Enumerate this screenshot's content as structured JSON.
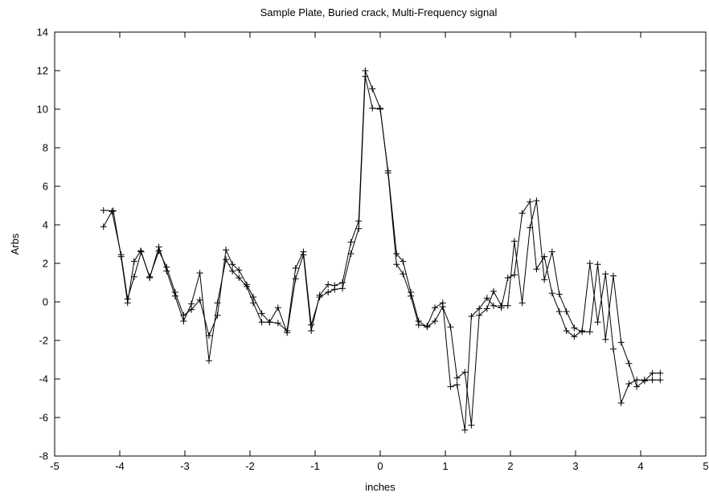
{
  "chart_data": {
    "type": "line",
    "title": "Sample Plate, Buried crack, Multi-Frequency signal",
    "xlabel": "inches",
    "ylabel": "Arbs",
    "xlim": [
      -5,
      5
    ],
    "ylim": [
      -8,
      14
    ],
    "xticks": [
      -5,
      -4,
      -3,
      -2,
      -1,
      0,
      1,
      2,
      3,
      4,
      5
    ],
    "yticks": [
      -8,
      -6,
      -4,
      -2,
      0,
      2,
      4,
      6,
      8,
      10,
      12,
      14
    ],
    "grid": false,
    "marker": "plus",
    "series": [
      {
        "x": [
          -4.25,
          -4.1,
          -3.98,
          -3.88,
          -3.78,
          -3.68,
          -3.54,
          -3.4,
          -3.28,
          -3.15,
          -3.02,
          -2.9,
          -2.77,
          -2.63,
          -2.5,
          -2.37,
          -2.27,
          -2.17,
          -2.05,
          -1.95,
          -1.82,
          -1.7,
          -1.57,
          -1.43,
          -1.3,
          -1.18,
          -1.06,
          -0.93,
          -0.8,
          -0.7,
          -0.58,
          -0.45,
          -0.33,
          -0.23,
          -0.12,
          0.0,
          0.12,
          0.25,
          0.35,
          0.47,
          0.59,
          0.72,
          0.84,
          0.96,
          1.08,
          1.18,
          1.3,
          1.4,
          1.52,
          1.64,
          1.74,
          1.86,
          1.96,
          2.06,
          2.18,
          2.3,
          2.4,
          2.52,
          2.64,
          2.75,
          2.86,
          2.98,
          3.1,
          3.22,
          3.34,
          3.46,
          3.58,
          3.7,
          3.82,
          3.94,
          4.06,
          4.18,
          4.3
        ],
        "y": [
          4.75,
          4.73,
          2.35,
          -0.05,
          2.1,
          2.65,
          1.3,
          2.65,
          1.8,
          0.5,
          -0.7,
          -0.4,
          0.1,
          -1.75,
          -0.7,
          2.7,
          1.95,
          1.65,
          0.9,
          0.25,
          -0.6,
          -1.05,
          -1.1,
          -1.5,
          1.75,
          2.6,
          -1.2,
          0.25,
          0.5,
          0.65,
          0.7,
          2.5,
          3.8,
          11.7,
          10.05,
          10.0,
          6.8,
          2.5,
          2.1,
          0.5,
          -1.0,
          -1.3,
          -1.0,
          -0.25,
          -1.3,
          -3.95,
          -3.65,
          -6.4,
          -0.7,
          -0.35,
          0.55,
          -0.2,
          -0.2,
          3.15,
          -0.05,
          3.85,
          5.25,
          1.15,
          2.6,
          0.4,
          -0.5,
          -1.35,
          -1.55,
          -1.55,
          1.95,
          -1.95,
          1.35,
          -2.1,
          -3.2,
          -4.4,
          -4.1,
          -3.7,
          -3.7
        ]
      },
      {
        "x": [
          -4.25,
          -4.12,
          -3.98,
          -3.88,
          -3.78,
          -3.67,
          -3.54,
          -3.4,
          -3.28,
          -3.15,
          -3.02,
          -2.9,
          -2.77,
          -2.63,
          -2.5,
          -2.37,
          -2.27,
          -2.17,
          -2.05,
          -1.95,
          -1.82,
          -1.7,
          -1.57,
          -1.43,
          -1.3,
          -1.18,
          -1.06,
          -0.93,
          -0.8,
          -0.7,
          -0.58,
          -0.45,
          -0.33,
          -0.23,
          -0.12,
          0.0,
          0.12,
          0.25,
          0.35,
          0.47,
          0.59,
          0.72,
          0.84,
          0.96,
          1.08,
          1.18,
          1.3,
          1.4,
          1.52,
          1.64,
          1.74,
          1.86,
          1.96,
          2.06,
          2.18,
          2.3,
          2.4,
          2.52,
          2.64,
          2.75,
          2.86,
          2.98,
          3.1,
          3.22,
          3.34,
          3.46,
          3.58,
          3.7,
          3.82,
          3.94,
          4.06,
          4.18,
          4.3
        ],
        "y": [
          3.9,
          4.7,
          2.45,
          0.15,
          1.3,
          2.6,
          1.25,
          2.85,
          1.6,
          0.3,
          -1.0,
          -0.1,
          1.5,
          -3.05,
          -0.05,
          2.2,
          1.6,
          1.25,
          0.8,
          -0.05,
          -1.05,
          -1.05,
          -0.3,
          -1.6,
          1.2,
          2.45,
          -1.5,
          0.35,
          0.9,
          0.85,
          1.0,
          3.1,
          4.2,
          12.0,
          11.05,
          10.05,
          6.7,
          1.95,
          1.45,
          0.3,
          -1.2,
          -1.25,
          -0.3,
          -0.05,
          -4.4,
          -4.3,
          -6.65,
          -0.75,
          -0.35,
          0.2,
          -0.2,
          -0.3,
          1.25,
          1.4,
          4.6,
          5.2,
          1.7,
          2.35,
          0.45,
          -0.5,
          -1.5,
          -1.8,
          -1.5,
          2.0,
          -1.05,
          1.45,
          -2.45,
          -5.25,
          -4.25,
          -4.05,
          -4.05,
          -4.05,
          -4.05
        ]
      }
    ]
  }
}
